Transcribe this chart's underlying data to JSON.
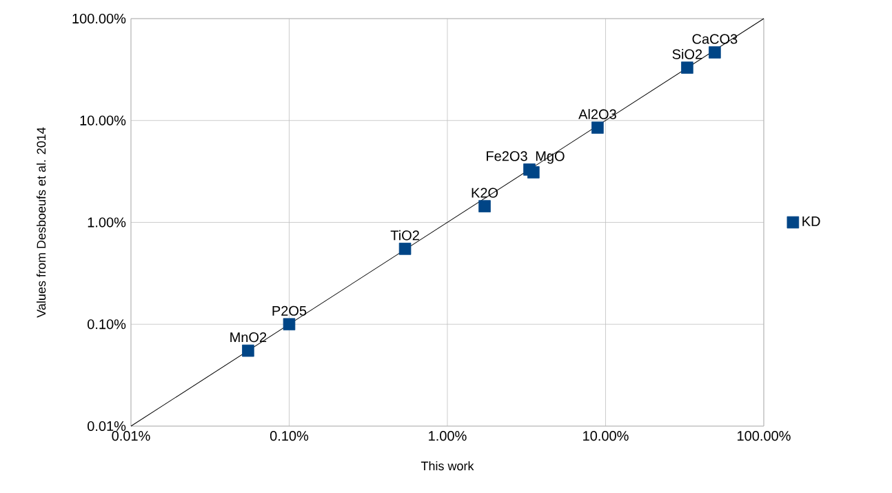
{
  "chart_data": {
    "type": "scatter",
    "xlabel": "This work",
    "ylabel": "Values from Desboeufs et al. 2014",
    "log": "xy",
    "grid": true,
    "legend": "right",
    "marker": "square",
    "xlim": [
      0.01,
      100
    ],
    "ylim": [
      0.01,
      100
    ],
    "xticks": [
      {
        "value": 0.01,
        "label": "0.01%"
      },
      {
        "value": 0.1,
        "label": "0.10%"
      },
      {
        "value": 1,
        "label": "1.00%"
      },
      {
        "value": 10,
        "label": "10.00%"
      },
      {
        "value": 100,
        "label": "100.00%"
      }
    ],
    "yticks": [
      {
        "value": 0.01,
        "label": "0.01%"
      },
      {
        "value": 0.1,
        "label": "0.10%"
      },
      {
        "value": 1,
        "label": "1.00%"
      },
      {
        "value": 10,
        "label": "10.00%"
      },
      {
        "value": 100,
        "label": "100.00%"
      }
    ],
    "series": [
      {
        "name": "KD",
        "color": "#004586",
        "x": [
          0.055,
          0.1,
          0.54,
          1.72,
          3.3,
          3.5,
          8.9,
          32.8,
          49
        ],
        "values": [
          0.055,
          0.1,
          0.55,
          1.44,
          3.3,
          3.1,
          8.5,
          33,
          46.6
        ]
      },
      {
        "type": "line",
        "color": "#000000",
        "line_style": "solid",
        "marker": "none",
        "x": [
          0.01,
          100
        ],
        "values": [
          0.01,
          100
        ]
      }
    ],
    "annotations": [
      {
        "text": "MnO2",
        "x": 0.055,
        "y": 0.055
      },
      {
        "text": "P2O5",
        "x": 0.1,
        "y": 0.1
      },
      {
        "text": "TiO2",
        "x": 0.54,
        "y": 0.55
      },
      {
        "text": "K2O",
        "x": 1.72,
        "y": 1.44
      },
      {
        "text": "Fe2O3",
        "x": 3.3,
        "y": 3.3
      },
      {
        "text": "MgO",
        "x": 3.5,
        "y": 3.1
      },
      {
        "text": "Al2O3",
        "x": 8.9,
        "y": 8.5
      },
      {
        "text": "SiO2",
        "x": 32.8,
        "y": 33
      },
      {
        "text": "CaCO3",
        "x": 49,
        "y": 46.6
      }
    ]
  }
}
